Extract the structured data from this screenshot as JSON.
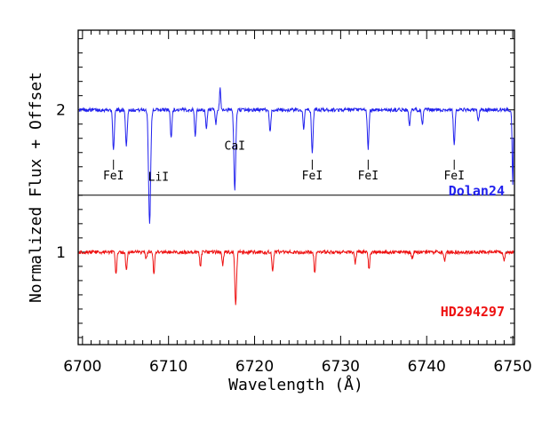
{
  "chart_data": {
    "type": "line",
    "xlabel": "Wavelength (Å)",
    "ylabel": "Normalized Flux + Offset",
    "xlim": [
      6699.5,
      6750.2
    ],
    "ylim": [
      0.35,
      2.56
    ],
    "x_ticks": [
      6700,
      6710,
      6720,
      6730,
      6740,
      6750
    ],
    "x_tick_labels": [
      "6700",
      "6710",
      "6720",
      "6730",
      "6740",
      "6750"
    ],
    "y_ticks": [
      1,
      2
    ],
    "y_tick_labels": [
      "1",
      "2"
    ],
    "separator_y": 1.4,
    "series": [
      {
        "name": "Dolan24",
        "color": "#2222ee",
        "offset": 2.0,
        "lines": [
          {
            "x": 6703.6,
            "depth": 0.27,
            "width": 0.14
          },
          {
            "x": 6705.1,
            "depth": 0.25,
            "width": 0.14
          },
          {
            "x": 6707.8,
            "depth": 0.8,
            "width": 0.17
          },
          {
            "x": 6710.3,
            "depth": 0.2,
            "width": 0.12
          },
          {
            "x": 6713.1,
            "depth": 0.18,
            "width": 0.12
          },
          {
            "x": 6714.4,
            "depth": 0.14,
            "width": 0.12
          },
          {
            "x": 6715.5,
            "depth": 0.1,
            "width": 0.12
          },
          {
            "x": 6717.7,
            "depth": 0.57,
            "width": 0.15
          },
          {
            "x": 6721.8,
            "depth": 0.15,
            "width": 0.13
          },
          {
            "x": 6725.7,
            "depth": 0.13,
            "width": 0.12
          },
          {
            "x": 6726.7,
            "depth": 0.3,
            "width": 0.13
          },
          {
            "x": 6733.2,
            "depth": 0.28,
            "width": 0.13
          },
          {
            "x": 6738.0,
            "depth": 0.12,
            "width": 0.12
          },
          {
            "x": 6739.5,
            "depth": 0.11,
            "width": 0.12
          },
          {
            "x": 6743.2,
            "depth": 0.24,
            "width": 0.13
          },
          {
            "x": 6746.0,
            "depth": 0.08,
            "width": 0.12
          },
          {
            "x": 6750.0,
            "depth": 0.52,
            "width": 0.1
          }
        ],
        "emission": [
          {
            "x": 6716.0,
            "height": 0.15,
            "width": 0.1
          }
        ]
      },
      {
        "name": "HD294297",
        "color": "#ee1111",
        "offset": 1.0,
        "lines": [
          {
            "x": 6703.9,
            "depth": 0.16,
            "width": 0.12
          },
          {
            "x": 6705.1,
            "depth": 0.13,
            "width": 0.12
          },
          {
            "x": 6707.4,
            "depth": 0.05,
            "width": 0.12
          },
          {
            "x": 6708.3,
            "depth": 0.15,
            "width": 0.12
          },
          {
            "x": 6713.7,
            "depth": 0.1,
            "width": 0.12
          },
          {
            "x": 6716.3,
            "depth": 0.09,
            "width": 0.12
          },
          {
            "x": 6717.8,
            "depth": 0.37,
            "width": 0.14
          },
          {
            "x": 6722.1,
            "depth": 0.14,
            "width": 0.12
          },
          {
            "x": 6727.0,
            "depth": 0.15,
            "width": 0.12
          },
          {
            "x": 6731.7,
            "depth": 0.08,
            "width": 0.12
          },
          {
            "x": 6733.3,
            "depth": 0.12,
            "width": 0.12
          },
          {
            "x": 6738.3,
            "depth": 0.05,
            "width": 0.12
          },
          {
            "x": 6742.1,
            "depth": 0.06,
            "width": 0.12
          },
          {
            "x": 6749.0,
            "depth": 0.06,
            "width": 0.12
          }
        ],
        "emission": []
      }
    ],
    "line_ids": [
      {
        "label": "FeI",
        "x": 6703.6
      },
      {
        "label": "LiI",
        "x": 6707.8
      },
      {
        "label": "CaI",
        "x": 6717.7
      },
      {
        "label": "FeI",
        "x": 6726.7
      },
      {
        "label": "FeI",
        "x": 6733.2
      },
      {
        "label": "FeI",
        "x": 6743.2
      }
    ]
  }
}
